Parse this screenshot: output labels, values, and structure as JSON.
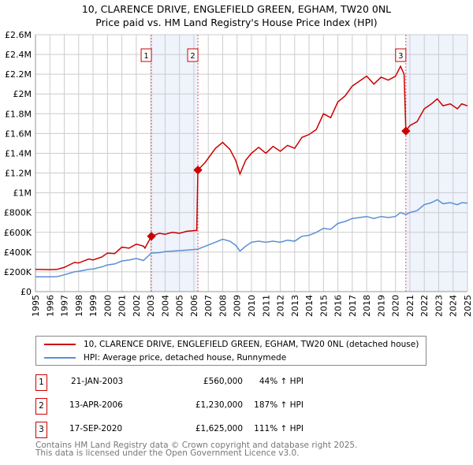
{
  "chart_data": {
    "type": "line",
    "title": "10, CLARENCE DRIVE, ENGLEFIELD GREEN, EGHAM, TW20 0NL",
    "subtitle": "Price paid vs. HM Land Registry's House Price Index (HPI)",
    "xlim": [
      1995,
      2025
    ],
    "ylim": [
      0,
      2600000
    ],
    "x_ticks": [
      "1995",
      "1996",
      "1997",
      "1998",
      "1999",
      "2000",
      "2001",
      "2002",
      "2003",
      "2004",
      "2005",
      "2006",
      "2007",
      "2008",
      "2009",
      "2010",
      "2011",
      "2012",
      "2013",
      "2014",
      "2015",
      "2016",
      "2017",
      "2018",
      "2019",
      "2020",
      "2021",
      "2022",
      "2023",
      "2024",
      "2025"
    ],
    "y_ticks": [
      {
        "v": 0,
        "label": "£0"
      },
      {
        "v": 200000,
        "label": "£200K"
      },
      {
        "v": 400000,
        "label": "£400K"
      },
      {
        "v": 600000,
        "label": "£600K"
      },
      {
        "v": 800000,
        "label": "£800K"
      },
      {
        "v": 1000000,
        "label": "£1M"
      },
      {
        "v": 1200000,
        "label": "£1.2M"
      },
      {
        "v": 1400000,
        "label": "£1.4M"
      },
      {
        "v": 1600000,
        "label": "£1.6M"
      },
      {
        "v": 1800000,
        "label": "£1.8M"
      },
      {
        "v": 2000000,
        "label": "£2M"
      },
      {
        "v": 2200000,
        "label": "£2.2M"
      },
      {
        "v": 2400000,
        "label": "£2.4M"
      },
      {
        "v": 2600000,
        "label": "£2.6M"
      }
    ],
    "grid": true,
    "series": [
      {
        "name": "10, CLARENCE DRIVE, ENGLEFIELD GREEN, EGHAM, TW20 0NL (detached house)",
        "color": "#cc0000",
        "points": [
          [
            1995,
            225000
          ],
          [
            1996,
            222000
          ],
          [
            1996.5,
            225000
          ],
          [
            1997,
            245000
          ],
          [
            1997.7,
            295000
          ],
          [
            1998,
            290000
          ],
          [
            1998.7,
            330000
          ],
          [
            1999,
            320000
          ],
          [
            1999.6,
            350000
          ],
          [
            2000,
            390000
          ],
          [
            2000.5,
            385000
          ],
          [
            2001,
            450000
          ],
          [
            2001.5,
            440000
          ],
          [
            2002,
            480000
          ],
          [
            2002.5,
            460000
          ],
          [
            2002.6,
            440000
          ],
          [
            2003.05,
            560000
          ],
          [
            2003.6,
            590000
          ],
          [
            2004,
            580000
          ],
          [
            2004.5,
            600000
          ],
          [
            2005,
            590000
          ],
          [
            2005.5,
            610000
          ],
          [
            2006.2,
            620000
          ],
          [
            2006.28,
            1230000
          ],
          [
            2006.8,
            1310000
          ],
          [
            2007.5,
            1450000
          ],
          [
            2008,
            1510000
          ],
          [
            2008.5,
            1440000
          ],
          [
            2008.9,
            1330000
          ],
          [
            2009.2,
            1190000
          ],
          [
            2009.6,
            1330000
          ],
          [
            2010,
            1400000
          ],
          [
            2010.5,
            1460000
          ],
          [
            2011,
            1400000
          ],
          [
            2011.5,
            1470000
          ],
          [
            2012,
            1420000
          ],
          [
            2012.5,
            1480000
          ],
          [
            2013,
            1450000
          ],
          [
            2013.5,
            1560000
          ],
          [
            2014,
            1590000
          ],
          [
            2014.5,
            1640000
          ],
          [
            2015,
            1800000
          ],
          [
            2015.5,
            1760000
          ],
          [
            2016,
            1920000
          ],
          [
            2016.5,
            1980000
          ],
          [
            2017,
            2080000
          ],
          [
            2017.5,
            2130000
          ],
          [
            2018,
            2180000
          ],
          [
            2018.5,
            2100000
          ],
          [
            2019,
            2170000
          ],
          [
            2019.5,
            2140000
          ],
          [
            2020,
            2180000
          ],
          [
            2020.35,
            2280000
          ],
          [
            2020.6,
            2200000
          ],
          [
            2020.72,
            1625000
          ],
          [
            2021,
            1680000
          ],
          [
            2021.5,
            1720000
          ],
          [
            2022,
            1850000
          ],
          [
            2022.5,
            1900000
          ],
          [
            2022.9,
            1950000
          ],
          [
            2023.3,
            1880000
          ],
          [
            2023.8,
            1900000
          ],
          [
            2024.3,
            1850000
          ],
          [
            2024.6,
            1900000
          ],
          [
            2025,
            1880000
          ]
        ]
      },
      {
        "name": "HPI: Average price, detached house, Runnymede",
        "color": "#5b8fd4",
        "points": [
          [
            1995,
            150000
          ],
          [
            1996,
            150000
          ],
          [
            1996.5,
            152000
          ],
          [
            1997,
            170000
          ],
          [
            1997.7,
            200000
          ],
          [
            1998,
            205000
          ],
          [
            1998.7,
            225000
          ],
          [
            1999,
            228000
          ],
          [
            1999.6,
            250000
          ],
          [
            2000,
            270000
          ],
          [
            2000.5,
            280000
          ],
          [
            2001,
            310000
          ],
          [
            2001.5,
            320000
          ],
          [
            2002,
            335000
          ],
          [
            2002.5,
            315000
          ],
          [
            2003.05,
            390000
          ],
          [
            2003.6,
            395000
          ],
          [
            2004,
            405000
          ],
          [
            2004.5,
            410000
          ],
          [
            2005,
            415000
          ],
          [
            2005.5,
            420000
          ],
          [
            2006.28,
            430000
          ],
          [
            2006.8,
            460000
          ],
          [
            2007.5,
            500000
          ],
          [
            2008,
            530000
          ],
          [
            2008.5,
            510000
          ],
          [
            2008.9,
            470000
          ],
          [
            2009.2,
            410000
          ],
          [
            2009.6,
            460000
          ],
          [
            2010,
            500000
          ],
          [
            2010.5,
            510000
          ],
          [
            2011,
            500000
          ],
          [
            2011.5,
            510000
          ],
          [
            2012,
            500000
          ],
          [
            2012.5,
            520000
          ],
          [
            2013,
            510000
          ],
          [
            2013.5,
            560000
          ],
          [
            2014,
            570000
          ],
          [
            2014.5,
            600000
          ],
          [
            2015,
            640000
          ],
          [
            2015.5,
            630000
          ],
          [
            2016,
            690000
          ],
          [
            2016.5,
            710000
          ],
          [
            2017,
            740000
          ],
          [
            2017.5,
            750000
          ],
          [
            2018,
            760000
          ],
          [
            2018.5,
            740000
          ],
          [
            2019,
            760000
          ],
          [
            2019.5,
            750000
          ],
          [
            2020,
            760000
          ],
          [
            2020.35,
            800000
          ],
          [
            2020.72,
            780000
          ],
          [
            2021,
            800000
          ],
          [
            2021.5,
            820000
          ],
          [
            2022,
            880000
          ],
          [
            2022.5,
            900000
          ],
          [
            2022.9,
            930000
          ],
          [
            2023.3,
            890000
          ],
          [
            2023.8,
            900000
          ],
          [
            2024.3,
            880000
          ],
          [
            2024.6,
            900000
          ],
          [
            2025,
            895000
          ]
        ]
      }
    ],
    "sales": [
      {
        "id": "1",
        "year": 2003.05,
        "value": 560000
      },
      {
        "id": "2",
        "year": 2006.28,
        "value": 1230000
      },
      {
        "id": "3",
        "year": 2020.72,
        "value": 1625000
      }
    ],
    "shaded_ranges": [
      [
        2003.05,
        2006.28
      ],
      [
        2020.72,
        2025
      ]
    ],
    "legend_placement": "below"
  },
  "legend": {
    "items": [
      "10, CLARENCE DRIVE, ENGLEFIELD GREEN, EGHAM, TW20 0NL (detached house)",
      "HPI: Average price, detached house, Runnymede"
    ]
  },
  "transactions": [
    {
      "num": "1",
      "date": "21-JAN-2003",
      "price": "£560,000",
      "hpi": "44% ↑ HPI"
    },
    {
      "num": "2",
      "date": "13-APR-2006",
      "price": "£1,230,000",
      "hpi": "187% ↑ HPI"
    },
    {
      "num": "3",
      "date": "17-SEP-2020",
      "price": "£1,625,000",
      "hpi": "111% ↑ HPI"
    }
  ],
  "footer": [
    "Contains HM Land Registry data © Crown copyright and database right 2025.",
    "This data is licensed under the Open Government Licence v3.0."
  ]
}
